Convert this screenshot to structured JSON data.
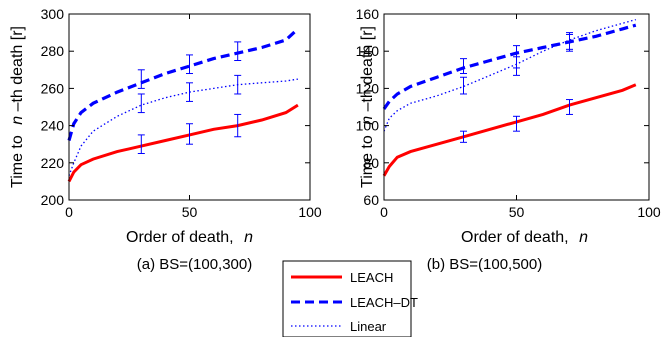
{
  "chart_data": [
    {
      "type": "line",
      "caption": "(a) BS=(100,300)",
      "xlabel": "Order of death,",
      "xlabel_var": "n",
      "ylabel_prefix": "Time to",
      "ylabel_var": "n",
      "ylabel_suffix": "–th death [r]",
      "xlim": [
        0,
        100
      ],
      "ylim": [
        200,
        300
      ],
      "xticks": [
        0,
        50,
        100
      ],
      "yticks": [
        200,
        220,
        240,
        260,
        280,
        300
      ],
      "series": [
        {
          "name": "LEACH",
          "x": [
            0,
            2,
            5,
            10,
            20,
            30,
            40,
            50,
            60,
            70,
            80,
            90,
            95
          ],
          "y": [
            210,
            215,
            219,
            222,
            226,
            229,
            232,
            235,
            238,
            240,
            243,
            247,
            251
          ],
          "error_bars": [
            {
              "x": 30,
              "y": 230,
              "low": 225,
              "high": 235
            },
            {
              "x": 50,
              "y": 236,
              "low": 230,
              "high": 241
            },
            {
              "x": 70,
              "y": 240,
              "low": 234,
              "high": 246
            }
          ]
        },
        {
          "name": "LEACH–DT",
          "x": [
            0,
            2,
            5,
            10,
            20,
            30,
            40,
            50,
            60,
            70,
            80,
            90,
            95
          ],
          "y": [
            232,
            241,
            247,
            252,
            258,
            263,
            268,
            272,
            276,
            279,
            282,
            286,
            292
          ],
          "error_bars": [
            {
              "x": 30,
              "y": 265,
              "low": 260,
              "high": 270
            },
            {
              "x": 50,
              "y": 273,
              "low": 268,
              "high": 278
            },
            {
              "x": 70,
              "y": 280,
              "low": 275,
              "high": 285
            }
          ]
        },
        {
          "name": "Linear",
          "x": [
            0,
            2,
            5,
            10,
            20,
            30,
            40,
            50,
            60,
            70,
            80,
            90,
            95
          ],
          "y": [
            213,
            220,
            229,
            237,
            245,
            251,
            255,
            258,
            260,
            262,
            263,
            264,
            265
          ],
          "error_bars": [
            {
              "x": 30,
              "y": 252,
              "low": 247,
              "high": 257
            },
            {
              "x": 50,
              "y": 258,
              "low": 253,
              "high": 263
            },
            {
              "x": 70,
              "y": 262,
              "low": 257,
              "high": 267
            }
          ]
        }
      ]
    },
    {
      "type": "line",
      "caption": "(b) BS=(100,500)",
      "xlabel": "Order of death,",
      "xlabel_var": "n",
      "ylabel_prefix": "Time to",
      "ylabel_var": "n",
      "ylabel_suffix": "–th death [r]",
      "xlim": [
        0,
        100
      ],
      "ylim": [
        60,
        160
      ],
      "xticks": [
        0,
        50,
        100
      ],
      "yticks": [
        60,
        80,
        100,
        120,
        140,
        160
      ],
      "series": [
        {
          "name": "LEACH",
          "x": [
            0,
            2,
            5,
            10,
            20,
            30,
            40,
            50,
            60,
            70,
            80,
            90,
            95
          ],
          "y": [
            73,
            78,
            83,
            86,
            90,
            94,
            98,
            102,
            106,
            111,
            115,
            119,
            122
          ],
          "error_bars": [
            {
              "x": 30,
              "y": 94,
              "low": 91,
              "high": 97
            },
            {
              "x": 50,
              "y": 101,
              "low": 97,
              "high": 105
            },
            {
              "x": 70,
              "y": 110,
              "low": 106,
              "high": 114
            }
          ]
        },
        {
          "name": "LEACH–DT",
          "x": [
            0,
            2,
            5,
            10,
            20,
            30,
            40,
            50,
            60,
            70,
            80,
            90,
            95
          ],
          "y": [
            109,
            113,
            117,
            121,
            126,
            131,
            135,
            139,
            142,
            145,
            148,
            152,
            154
          ],
          "error_bars": [
            {
              "x": 30,
              "y": 132,
              "low": 128,
              "high": 136
            },
            {
              "x": 50,
              "y": 137,
              "low": 131,
              "high": 143
            },
            {
              "x": 70,
              "y": 145,
              "low": 141,
              "high": 149
            }
          ]
        },
        {
          "name": "Linear",
          "x": [
            0,
            2,
            5,
            10,
            20,
            30,
            40,
            50,
            60,
            70,
            80,
            90,
            95
          ],
          "y": [
            97,
            104,
            108,
            112,
            116,
            121,
            127,
            133,
            140,
            146,
            151,
            155,
            157
          ],
          "error_bars": [
            {
              "x": 30,
              "y": 121,
              "low": 117,
              "high": 126
            },
            {
              "x": 50,
              "y": 132,
              "low": 127,
              "high": 137
            },
            {
              "x": 70,
              "y": 145,
              "low": 140,
              "high": 150
            }
          ]
        }
      ]
    }
  ],
  "legend": {
    "entries": [
      {
        "label": "LEACH",
        "color": "#ff0000",
        "style": "solid"
      },
      {
        "label": "LEACH–DT",
        "color": "#0000ff",
        "style": "dashed"
      },
      {
        "label": "Linear",
        "color": "#0000ff",
        "style": "dotted"
      }
    ]
  },
  "colors": {
    "LEACH": "#ff0000",
    "LEACH–DT": "#0000ff",
    "Linear": "#0000ff",
    "error_bar": "#0000ff"
  }
}
